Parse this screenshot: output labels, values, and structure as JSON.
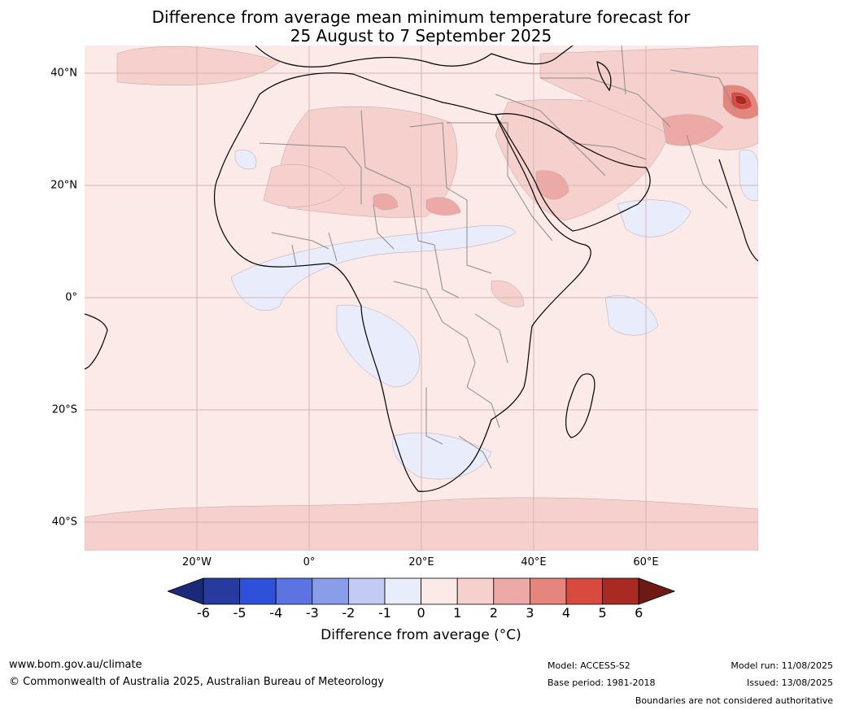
{
  "title": {
    "line1": "Difference from average mean minimum temperature forecast for",
    "line2": "25 August to 7 September 2025"
  },
  "map": {
    "lat_labels": [
      "40°N",
      "20°N",
      "0°",
      "20°S",
      "40°S"
    ],
    "lon_labels": [
      "20°W",
      "0°",
      "20°E",
      "40°E",
      "60°E"
    ],
    "lon_range": [
      -40,
      80
    ],
    "lat_range": [
      -45,
      45
    ]
  },
  "colorbar": {
    "ticks": [
      "-6",
      "-5",
      "-4",
      "-3",
      "-2",
      "-1",
      "0",
      "1",
      "2",
      "3",
      "4",
      "5",
      "6"
    ],
    "colors": [
      "#273b9e",
      "#2f50d8",
      "#5b74e2",
      "#8a9de8",
      "#c2cbf3",
      "#e9ecfb",
      "#fceae8",
      "#f5d0cc",
      "#eda9a5",
      "#e6857d",
      "#d84a3e",
      "#a82a22"
    ],
    "under_color": "#1a2a78",
    "over_color": "#6e1a14",
    "label": "Difference from average (°C)"
  },
  "footer": {
    "website": "www.bom.gov.au/climate",
    "copyright": "© Commonwealth of Australia 2025, Australian Bureau of Meteorology",
    "model": "Model: ACCESS-S2",
    "base_period": "Base period: 1981-2018",
    "model_run": "Model run: 11/08/2025",
    "issued": "Issued: 13/08/2025",
    "disclaimer": "Boundaries are not considered authoritative"
  }
}
